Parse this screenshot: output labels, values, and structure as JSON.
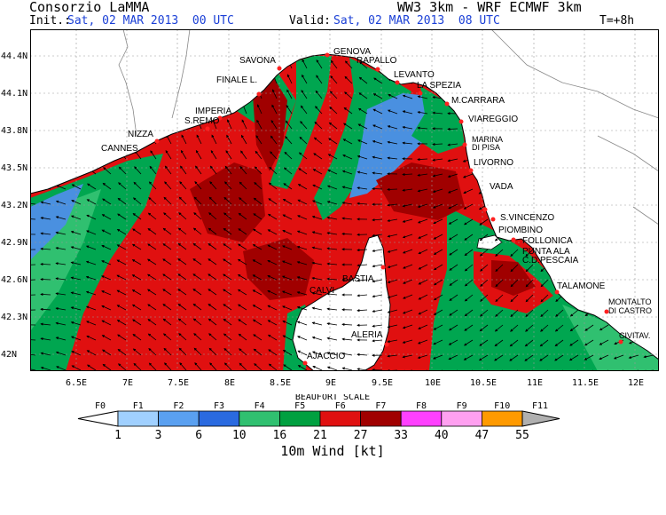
{
  "header": {
    "org": "Consorzio LaMMA",
    "model": "WW3 3km - WRF ECMWF 3km",
    "init_label": "Init.:",
    "init_value": "Sat, 02 MAR 2013  00 UTC",
    "valid_label": "Valid:",
    "valid_value": "Sat, 02 MAR 2013  08 UTC",
    "lead": "T=+8h"
  },
  "map": {
    "lat_ticks": [
      "44.4N",
      "44.1N",
      "43.8N",
      "43.5N",
      "43.2N",
      "42.9N",
      "42.6N",
      "42.3N",
      "42N"
    ],
    "lon_ticks": [
      "6.5E",
      "7E",
      "7.5E",
      "8E",
      "8.5E",
      "9E",
      "9.5E",
      "10E",
      "10.5E",
      "11E",
      "11.5E",
      "12E"
    ],
    "cities": [
      "GENOVA",
      "RAPALLO",
      "SAVONA",
      "LEVANTO",
      "FINALE L.",
      "LA SPEZIA",
      "M.CARRARA",
      "IMPERIA",
      "S.REMO",
      "VIAREGGIO",
      "NIZZA",
      "CANNES",
      "MARINA",
      "DI PISA",
      "LIVORNO",
      "VADA",
      "S.VINCENZO",
      "PIOMBINO",
      "FOLLONICA",
      "PUNTA ALA",
      "C.D.PESCAIA",
      "BASTIA",
      "CALVI",
      "TALAMONE",
      "MONTALTO",
      "DI CASTRO",
      "ALERIA",
      "CIVITAV.",
      "AJACCIO"
    ],
    "colors": {
      "sea_dark": "#8b0000",
      "sea_red": "#e01010",
      "sea_green": "#00a650",
      "sea_blue": "#4a90e0",
      "land": "#ffffff",
      "marker": "#ff2020"
    }
  },
  "legend": {
    "title": "BEAUFORT SCALE",
    "unit_label": "10m Wind [kt]",
    "forces": [
      "F0",
      "F1",
      "F2",
      "F3",
      "F4",
      "F5",
      "F6",
      "F7",
      "F8",
      "F9",
      "F10",
      "F11"
    ],
    "bounds": [
      "1",
      "3",
      "6",
      "10",
      "16",
      "21",
      "27",
      "33",
      "40",
      "47",
      "55"
    ],
    "colors": [
      "#ffffff",
      "#a0d0ff",
      "#5aa0f0",
      "#2a6ae0",
      "#30c070",
      "#00a040",
      "#e01010",
      "#a00000",
      "#ff40ff",
      "#ffa0f0",
      "#ff9a00",
      "#b0b0b0"
    ]
  }
}
